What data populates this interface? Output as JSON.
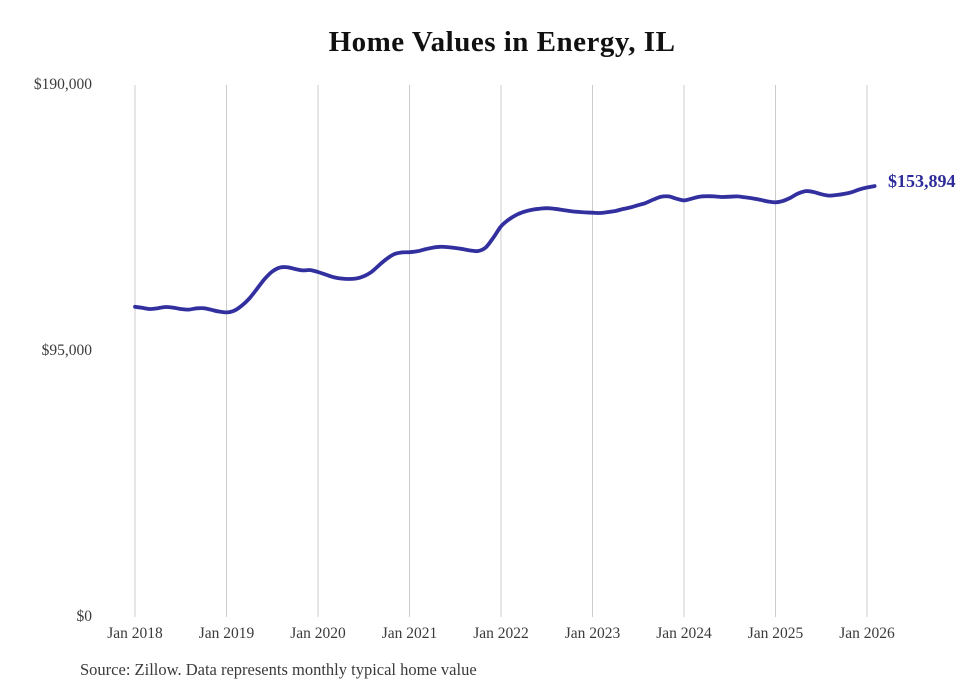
{
  "title": "Home Values in Energy, IL",
  "source_note": "Source: Zillow. Data represents monthly typical home value",
  "colors": {
    "line": "#322f9f",
    "grid": "#cccccc",
    "axis_text": "#3b3b3b",
    "title_text": "#111111",
    "accent": "#2e2b9a",
    "background": "#ffffff"
  },
  "chart_data": {
    "type": "line",
    "title": "Home Values in Energy, IL",
    "unit": "USD",
    "x_start": "Jan 2018",
    "x_end": "Feb 2026",
    "x_interval": "monthly",
    "x_tick_labels": [
      "Jan 2018",
      "Jan 2019",
      "Jan 2020",
      "Jan 2021",
      "Jan 2022",
      "Jan 2023",
      "Jan 2024",
      "Jan 2025",
      "Jan 2026"
    ],
    "y_ticks": [
      {
        "label": "$0",
        "value": 0
      },
      {
        "label": "$95,000",
        "value": 95000
      },
      {
        "label": "$190,000",
        "value": 190000
      }
    ],
    "ylim": [
      0,
      190000
    ],
    "grid": "vertical-only",
    "legend": "none",
    "end_label": "$153,894",
    "final_value": 153894,
    "series": [
      {
        "name": "Monthly typical home value",
        "values": [
          110800,
          110400,
          110000,
          110300,
          110700,
          110500,
          110000,
          109800,
          110200,
          110300,
          109700,
          109100,
          108800,
          109400,
          111200,
          113800,
          117200,
          120700,
          123400,
          124800,
          124900,
          124300,
          123800,
          123900,
          123200,
          122300,
          121400,
          120900,
          120700,
          120900,
          121700,
          123200,
          125600,
          127900,
          129600,
          130200,
          130300,
          130600,
          131300,
          131900,
          132200,
          132100,
          131800,
          131400,
          130900,
          130700,
          132000,
          135500,
          139500,
          141900,
          143600,
          144700,
          145400,
          145800,
          146000,
          145800,
          145400,
          145000,
          144700,
          144500,
          144400,
          144300,
          144600,
          145000,
          145700,
          146300,
          147100,
          147900,
          149100,
          150100,
          150200,
          149400,
          148800,
          149400,
          150100,
          150300,
          150200,
          150000,
          150100,
          150200,
          149900,
          149500,
          149000,
          148400,
          148100,
          148600,
          149800,
          151300,
          152100,
          151800,
          151000,
          150500,
          150700,
          151100,
          151700,
          152700,
          153400,
          153894
        ]
      }
    ]
  }
}
